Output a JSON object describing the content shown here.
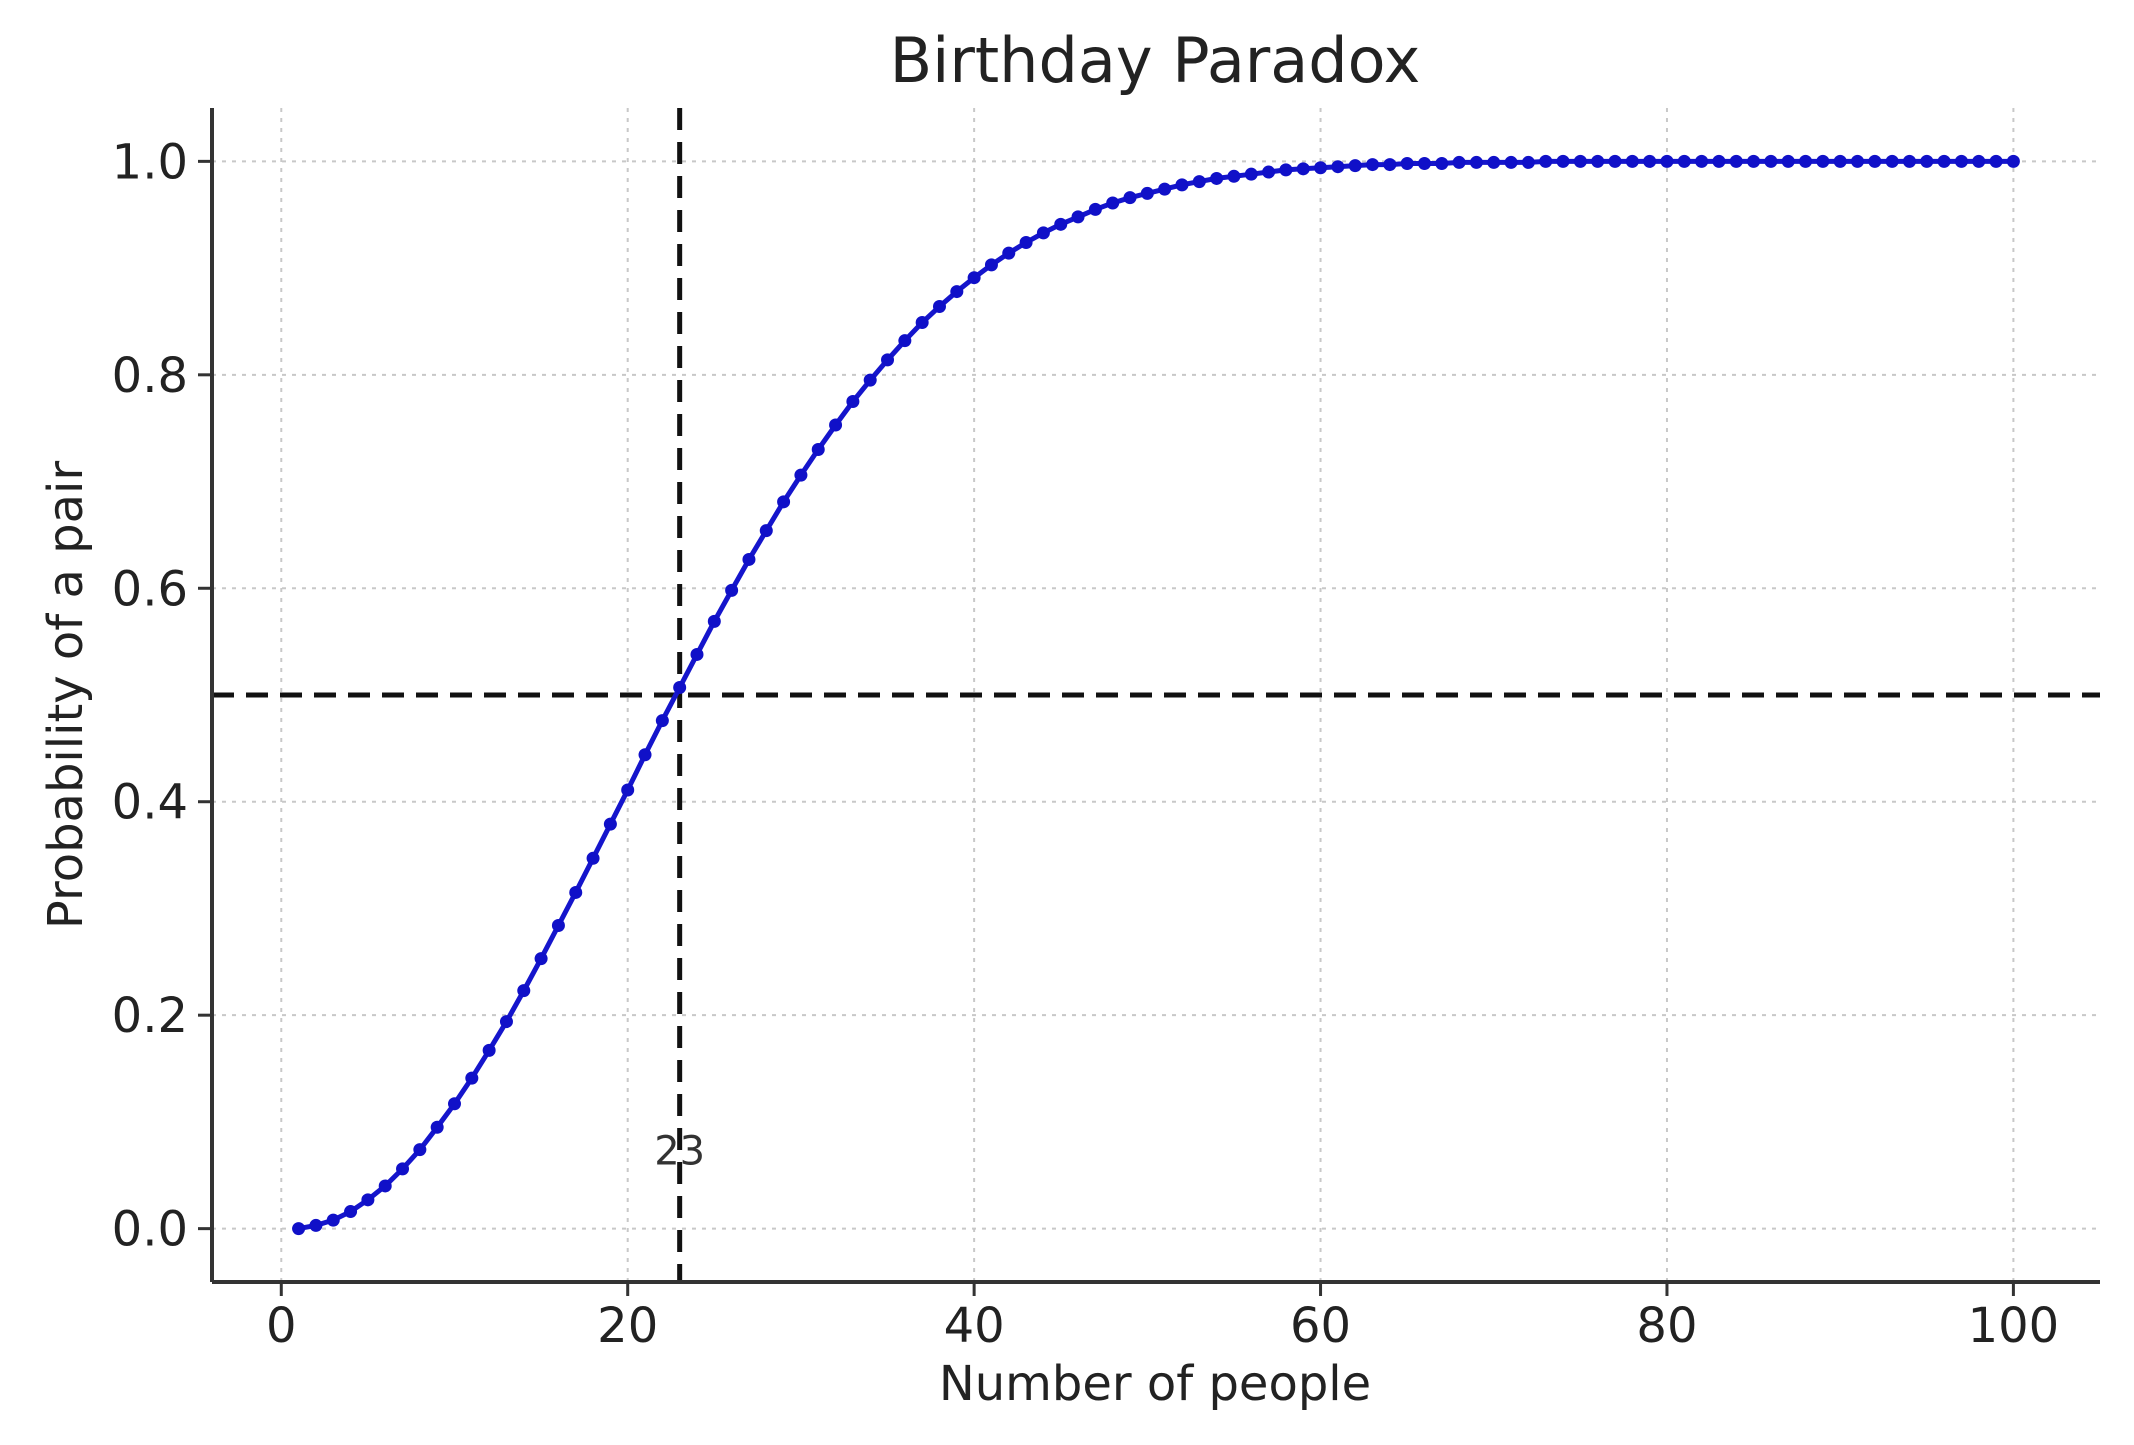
{
  "chart_data": {
    "type": "line",
    "title": "Birthday Paradox",
    "xlabel": "Number of people",
    "ylabel": "Probability of a pair",
    "xlim": [
      -4,
      105
    ],
    "ylim": [
      -0.05,
      1.05
    ],
    "xticks": [
      0,
      20,
      40,
      60,
      80,
      100
    ],
    "xtick_labels": [
      "0",
      "20",
      "40",
      "60",
      "80",
      "100"
    ],
    "yticks": [
      0.0,
      0.2,
      0.4,
      0.6,
      0.8,
      1.0
    ],
    "ytick_labels": [
      "0.0",
      "0.2",
      "0.4",
      "0.6",
      "0.8",
      "1.0"
    ],
    "grid": true,
    "series_color": "#1010c8",
    "marker": "circle",
    "x": [
      1,
      2,
      3,
      4,
      5,
      6,
      7,
      8,
      9,
      10,
      11,
      12,
      13,
      14,
      15,
      16,
      17,
      18,
      19,
      20,
      21,
      22,
      23,
      24,
      25,
      26,
      27,
      28,
      29,
      30,
      31,
      32,
      33,
      34,
      35,
      36,
      37,
      38,
      39,
      40,
      41,
      42,
      43,
      44,
      45,
      46,
      47,
      48,
      49,
      50,
      51,
      52,
      53,
      54,
      55,
      56,
      57,
      58,
      59,
      60,
      61,
      62,
      63,
      64,
      65,
      66,
      67,
      68,
      69,
      70,
      71,
      72,
      73,
      74,
      75,
      76,
      77,
      78,
      79,
      80,
      81,
      82,
      83,
      84,
      85,
      86,
      87,
      88,
      89,
      90,
      91,
      92,
      93,
      94,
      95,
      96,
      97,
      98,
      99,
      100
    ],
    "y": [
      0.0,
      0.003,
      0.008,
      0.016,
      0.027,
      0.04,
      0.056,
      0.074,
      0.095,
      0.117,
      0.141,
      0.167,
      0.194,
      0.223,
      0.253,
      0.284,
      0.315,
      0.347,
      0.379,
      0.411,
      0.444,
      0.476,
      0.507,
      0.538,
      0.569,
      0.598,
      0.627,
      0.654,
      0.681,
      0.706,
      0.73,
      0.753,
      0.775,
      0.795,
      0.814,
      0.832,
      0.849,
      0.864,
      0.878,
      0.891,
      0.903,
      0.914,
      0.924,
      0.933,
      0.941,
      0.948,
      0.955,
      0.961,
      0.966,
      0.97,
      0.974,
      0.978,
      0.981,
      0.984,
      0.986,
      0.988,
      0.99,
      0.992,
      0.993,
      0.994,
      0.995,
      0.996,
      0.997,
      0.997,
      0.998,
      0.998,
      0.998,
      0.999,
      0.999,
      0.999,
      0.999,
      0.999,
      1.0,
      1.0,
      1.0,
      1.0,
      1.0,
      1.0,
      1.0,
      1.0,
      1.0,
      1.0,
      1.0,
      1.0,
      1.0,
      1.0,
      1.0,
      1.0,
      1.0,
      1.0,
      1.0,
      1.0,
      1.0,
      1.0,
      1.0,
      1.0,
      1.0,
      1.0,
      1.0,
      1.0
    ],
    "reference_lines": {
      "vertical_x": 23,
      "horizontal_y": 0.5,
      "style": "dashed",
      "color": "#111111"
    },
    "annotations": [
      {
        "text": "23",
        "x": 23,
        "y": 0.06
      }
    ]
  }
}
